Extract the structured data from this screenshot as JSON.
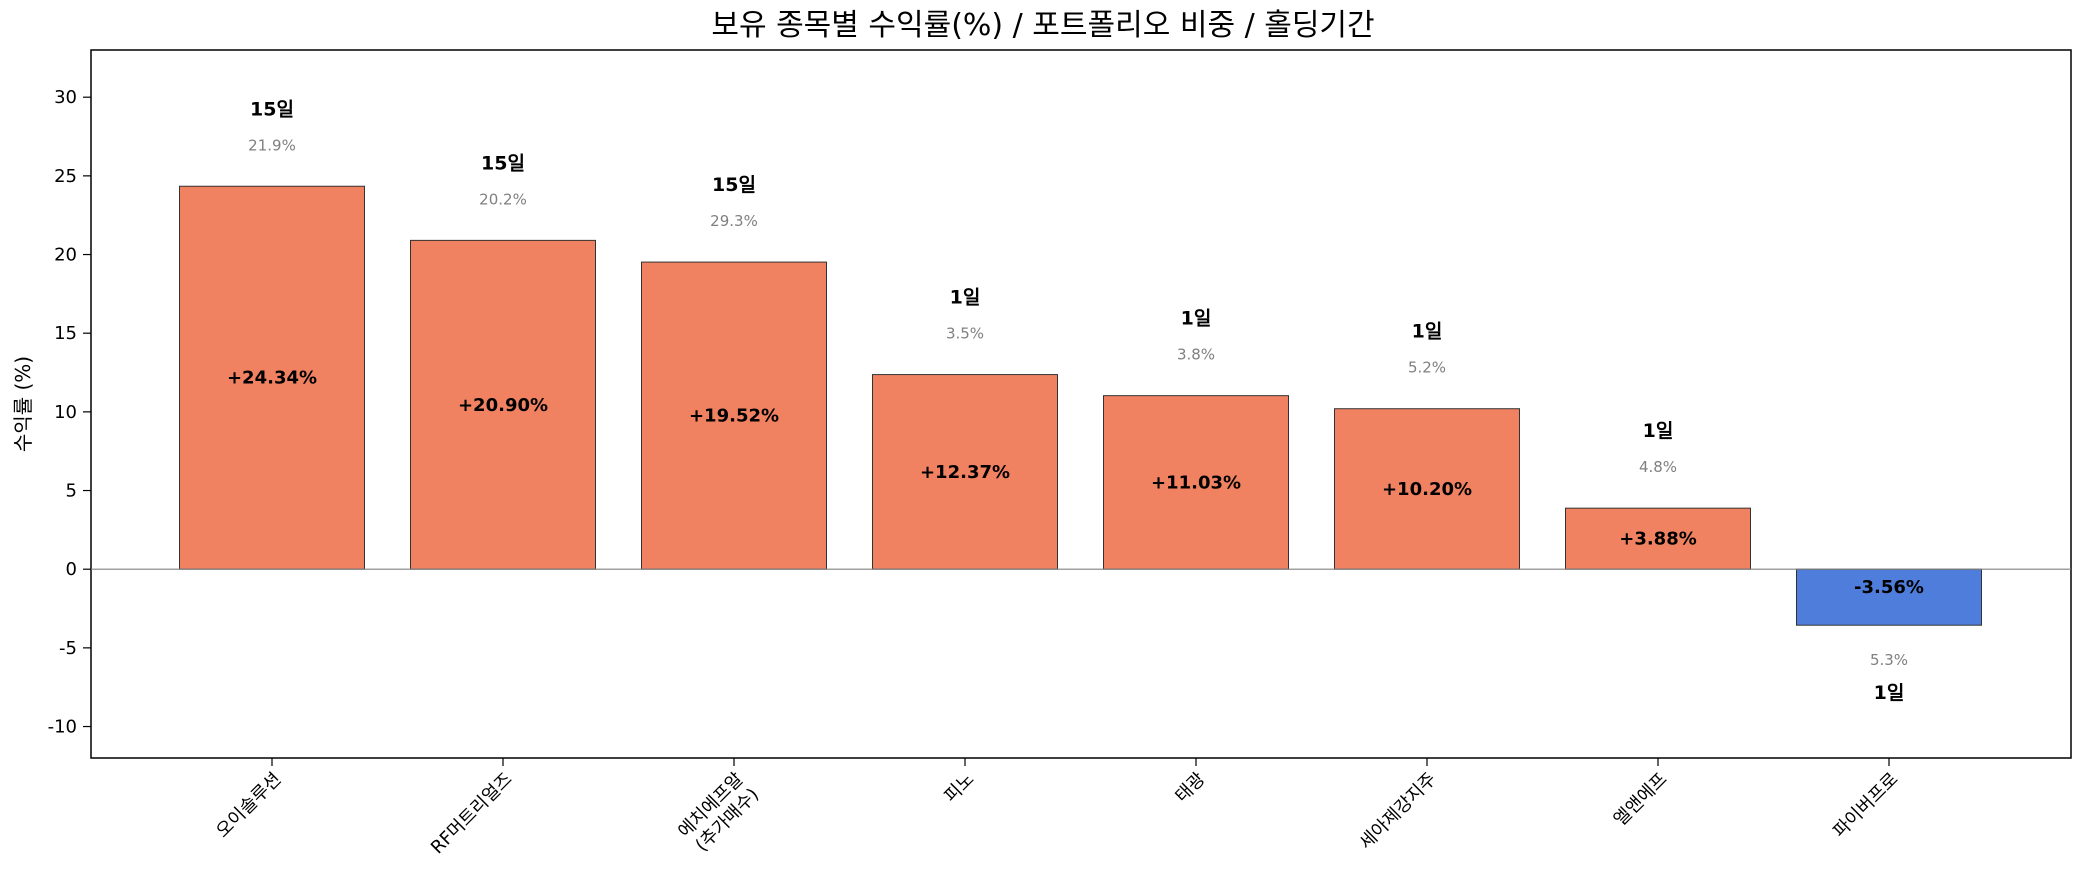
{
  "chart_data": {
    "type": "bar",
    "title": "보유 종목별 수익률(%) / 포트폴리오 비중 / 홀딩기간",
    "xlabel": "",
    "ylabel": "수익률 (%)",
    "ylim": [
      -12,
      33
    ],
    "yticks": [
      30,
      25,
      20,
      15,
      10,
      5,
      0,
      -5,
      -10
    ],
    "categories": [
      "오이솔루션",
      "RF머트리얼즈",
      "에치에프알\n(추가매수)",
      "피노",
      "태광",
      "세아제강지주",
      "엘앤에프",
      "파이버프로"
    ],
    "values": [
      24.34,
      20.9,
      19.52,
      12.37,
      11.03,
      10.2,
      3.88,
      -3.56
    ],
    "value_labels": [
      "+24.34%",
      "+20.90%",
      "+19.52%",
      "+12.37%",
      "+11.03%",
      "+10.20%",
      "+3.88%",
      "-3.56%"
    ],
    "weights": [
      "21.9%",
      "20.2%",
      "29.3%",
      "3.5%",
      "3.8%",
      "5.2%",
      "4.8%",
      "5.3%"
    ],
    "holding_days": [
      "15일",
      "15일",
      "15일",
      "1일",
      "1일",
      "1일",
      "1일",
      "1일"
    ],
    "colors": {
      "positive": "#F08262",
      "negative": "#4F7DDB",
      "zero_line": "#808080",
      "weight_text": "#808080"
    },
    "grid": false
  }
}
